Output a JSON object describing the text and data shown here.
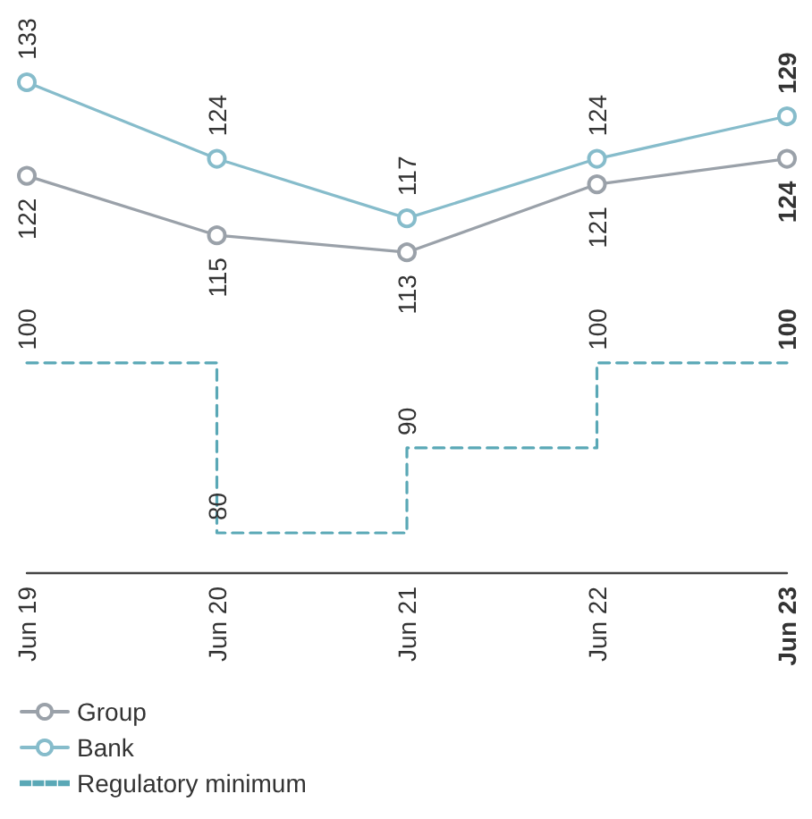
{
  "chart_data": {
    "type": "line",
    "categories": [
      "Jun 19",
      "Jun 20",
      "Jun 21",
      "Jun 22",
      "Jun 23"
    ],
    "series": [
      {
        "name": "Group",
        "color": "#9aa1a9",
        "values": [
          122,
          115,
          113,
          121,
          124
        ],
        "marker": "circle",
        "line_style": "solid"
      },
      {
        "name": "Bank",
        "color": "#86bccb",
        "values": [
          133,
          124,
          117,
          124,
          129
        ],
        "marker": "circle",
        "line_style": "solid"
      },
      {
        "name": "Regulatory minimum",
        "type": "step",
        "color": "#5aa8b6",
        "values": [
          100,
          80,
          90,
          100,
          100
        ],
        "marker": "none",
        "line_style": "dashed"
      }
    ],
    "data_labels": true,
    "grid": false,
    "legend": "bottom left"
  }
}
